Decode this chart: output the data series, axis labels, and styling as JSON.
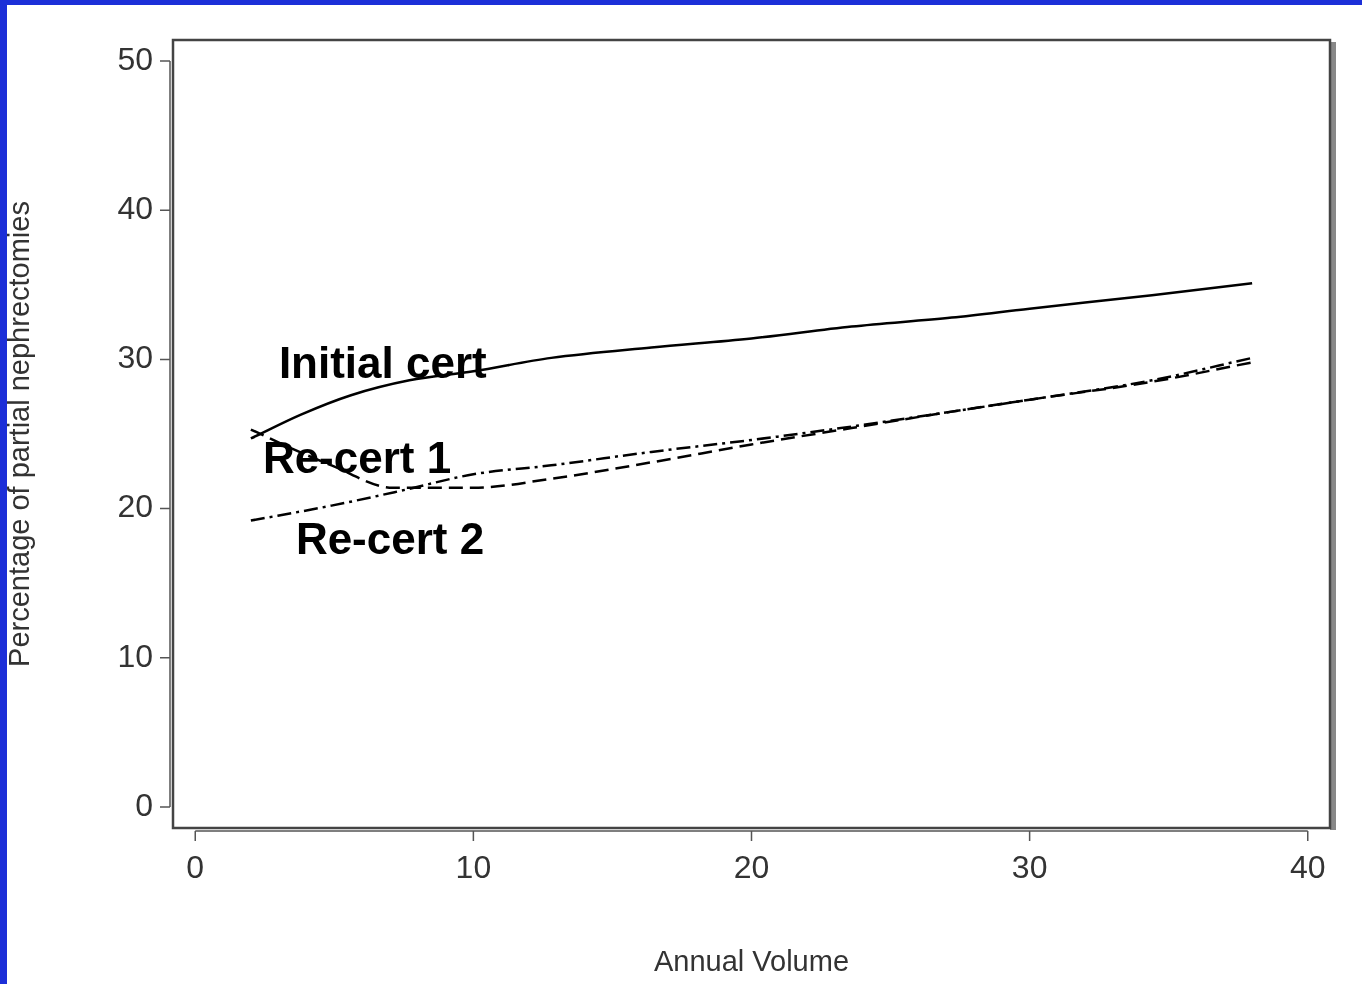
{
  "chart_data": {
    "type": "line",
    "xlabel": "Annual Volume",
    "ylabel": "Percentage of partial nephrectomies",
    "xlim": [
      -0.8,
      40.8
    ],
    "ylim": [
      -1.4,
      51.4
    ],
    "xticks": [
      0,
      10,
      20,
      30,
      40
    ],
    "yticks": [
      0,
      10,
      20,
      30,
      40,
      50
    ],
    "grid": false,
    "legend": false,
    "marker": "none",
    "series": [
      {
        "name": "Initial cert",
        "color": "#000000",
        "line_style": "solid",
        "x": [
          2,
          3.8,
          5.6,
          7.7,
          10,
          12.8,
          16.4,
          20,
          23.6,
          27.2,
          30,
          34.4,
          38
        ],
        "values": [
          24.7,
          26.3,
          27.6,
          28.6,
          29.2,
          30.1,
          30.8,
          31.4,
          32.2,
          32.8,
          33.4,
          34.3,
          35.1
        ]
      },
      {
        "name": "Re-cert 1",
        "color": "#000000",
        "line_style": "dashed",
        "x": [
          2,
          3.5,
          4.9,
          7.1,
          10,
          12.8,
          16.4,
          20,
          23.6,
          27.2,
          30,
          34.4,
          38
        ],
        "values": [
          25.3,
          24,
          22.9,
          21.4,
          21.4,
          22,
          23.1,
          24.3,
          25.4,
          26.5,
          27.3,
          28.5,
          29.8
        ]
      },
      {
        "name": "Re-cert 2",
        "color": "#000000",
        "line_style": "dotted",
        "x": [
          2,
          4.9,
          7.4,
          10,
          12.8,
          16.4,
          20,
          23.6,
          27.2,
          30,
          34.4,
          38
        ],
        "values": [
          19.2,
          20.2,
          21.2,
          22.3,
          22.9,
          23.8,
          24.6,
          25.5,
          26.5,
          27.3,
          28.6,
          30.1
        ]
      }
    ]
  }
}
